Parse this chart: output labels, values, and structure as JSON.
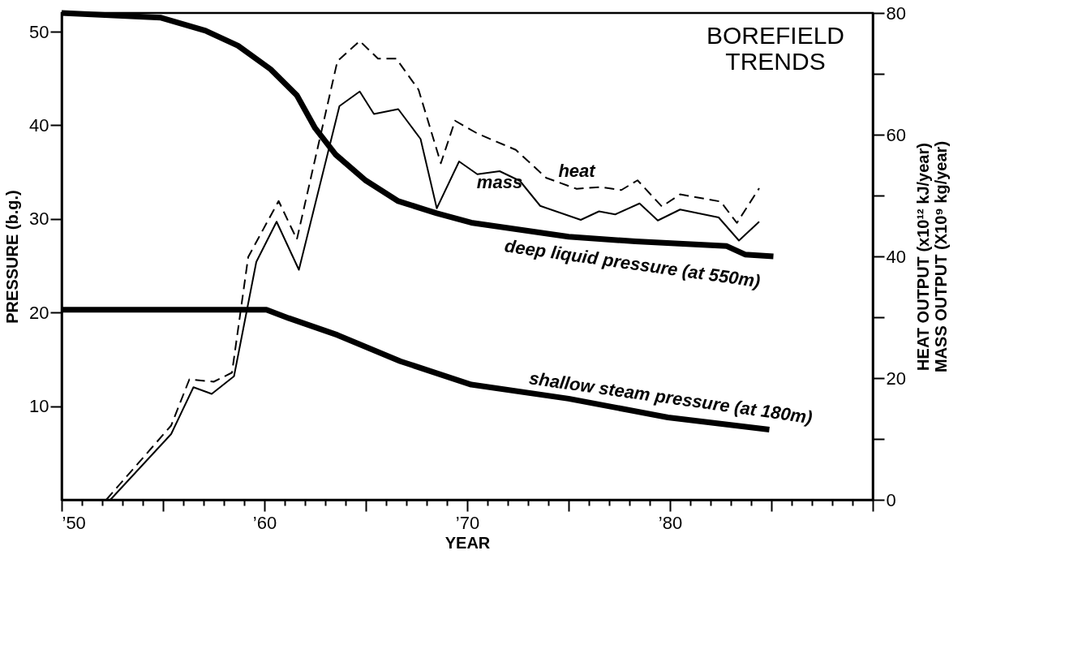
{
  "chart_data": {
    "type": "line",
    "title": "BOREFIELD TRENDS",
    "xlabel": "YEAR",
    "ylabel": "PRESSURE (b.g.)",
    "y2label": "HEAT OUTPUT (x10¹² kJ/year)\nMASS OUTPUT (X10⁹ kg/year)",
    "xlim": [
      1950,
      1990
    ],
    "xticks": [
      {
        "value": 1950,
        "label": "’50"
      },
      {
        "value": 1951,
        "label": null
      },
      {
        "value": 1952,
        "label": null
      },
      {
        "value": 1953,
        "label": null
      },
      {
        "value": 1954,
        "label": null
      },
      {
        "value": 1955,
        "label": null
      },
      {
        "value": 1956,
        "label": null
      },
      {
        "value": 1957,
        "label": null
      },
      {
        "value": 1958,
        "label": null
      },
      {
        "value": 1959,
        "label": null
      },
      {
        "value": 1960,
        "label": "’60"
      },
      {
        "value": 1961,
        "label": null
      },
      {
        "value": 1962,
        "label": null
      },
      {
        "value": 1963,
        "label": null
      },
      {
        "value": 1964,
        "label": null
      },
      {
        "value": 1965,
        "label": null
      },
      {
        "value": 1966,
        "label": null
      },
      {
        "value": 1967,
        "label": null
      },
      {
        "value": 1968,
        "label": null
      },
      {
        "value": 1969,
        "label": null
      },
      {
        "value": 1970,
        "label": "’70"
      },
      {
        "value": 1971,
        "label": null
      },
      {
        "value": 1972,
        "label": null
      },
      {
        "value": 1973,
        "label": null
      },
      {
        "value": 1974,
        "label": null
      },
      {
        "value": 1975,
        "label": null
      },
      {
        "value": 1976,
        "label": null
      },
      {
        "value": 1977,
        "label": null
      },
      {
        "value": 1978,
        "label": null
      },
      {
        "value": 1979,
        "label": null
      },
      {
        "value": 1980,
        "label": "’80"
      },
      {
        "value": 1981,
        "label": null
      },
      {
        "value": 1982,
        "label": null
      },
      {
        "value": 1983,
        "label": null
      },
      {
        "value": 1984,
        "label": null
      },
      {
        "value": 1985,
        "label": null
      },
      {
        "value": 1986,
        "label": null
      },
      {
        "value": 1987,
        "label": null
      },
      {
        "value": 1988,
        "label": null
      },
      {
        "value": 1989,
        "label": null
      },
      {
        "value": 1990,
        "label": null
      }
    ],
    "ylim": [
      0,
      52
    ],
    "yticks": [
      10,
      20,
      30,
      40,
      50
    ],
    "y2lim": [
      0,
      80
    ],
    "y2ticks": [
      0,
      {
        "value": 10,
        "label": null
      },
      20,
      {
        "value": 30,
        "label": null
      },
      40,
      {
        "value": 50,
        "label": null
      },
      60,
      {
        "value": 70,
        "label": null
      },
      80
    ],
    "grid": false,
    "legend": false,
    "marker": "none",
    "series": [
      {
        "name": "deep liquid pressure (at 550m)",
        "color": "#000000",
        "line_style": "solid",
        "x": [
          1950,
          1954.9,
          1957.1,
          1958.7,
          1960.3,
          1961.6,
          1962.5,
          1963.5,
          1965.0,
          1966.6,
          1968.5,
          1970.2,
          1975.0,
          1978.3,
          1982.8,
          1983.7,
          1985.1
        ],
        "values": [
          52,
          51.5,
          50.1,
          48.5,
          46.0,
          43.2,
          39.7,
          36.9,
          34.1,
          31.9,
          30.6,
          29.6,
          28.1,
          27.6,
          27.1,
          26.2,
          26.0
        ]
      },
      {
        "name": "shallow steam pressure (at 180m)",
        "color": "#000000",
        "line_style": "solid",
        "x": [
          1950,
          1960.1,
          1961.2,
          1963.6,
          1966.7,
          1970.2,
          1975.0,
          1979.9,
          1984.9
        ],
        "values": [
          20.3,
          20.3,
          19.4,
          17.6,
          14.8,
          12.3,
          10.8,
          8.8,
          7.5
        ]
      },
      {
        "name": "heat",
        "color": "#000000",
        "line_style": "dashed",
        "axis": "y2",
        "x": [
          1952.2,
          1955.4,
          1956.3,
          1957.5,
          1958.4,
          1959.2,
          1960.7,
          1961.6,
          1963.6,
          1964.7,
          1965.6,
          1966.5,
          1967.6,
          1968.7,
          1969.4,
          1970.5,
          1972.4,
          1973.9,
          1975.4,
          1976.6,
          1977.6,
          1978.4,
          1979.6,
          1980.5,
          1982.5,
          1983.3,
          1984.4
        ],
        "values": [
          0,
          12.2,
          19.8,
          19.4,
          20.9,
          39.9,
          49.1,
          42.8,
          72.1,
          75.4,
          72.5,
          72.5,
          67.4,
          55.3,
          62.3,
          60.2,
          57.5,
          52.9,
          51.1,
          51.4,
          50.9,
          52.5,
          48.2,
          50.2,
          49.0,
          45.5,
          51.2
        ]
      },
      {
        "name": "mass",
        "color": "#000000",
        "line_style": "solid",
        "axis": "y2",
        "x": [
          1952.4,
          1955.4,
          1956.5,
          1957.4,
          1958.5,
          1959.6,
          1960.6,
          1961.7,
          1963.7,
          1964.7,
          1965.4,
          1966.6,
          1967.7,
          1968.5,
          1969.6,
          1970.5,
          1971.6,
          1972.6,
          1973.6,
          1975.6,
          1976.5,
          1977.3,
          1978.5,
          1979.4,
          1980.5,
          1982.4,
          1983.4,
          1984.4
        ],
        "values": [
          0,
          10.8,
          18.5,
          17.4,
          20.3,
          39.1,
          45.7,
          37.8,
          64.7,
          67.1,
          63.4,
          64.2,
          59.3,
          47.9,
          55.6,
          53.5,
          54.0,
          52.4,
          48.3,
          46.0,
          47.4,
          46.9,
          48.7,
          45.9,
          47.7,
          46.4,
          42.6,
          45.7
        ]
      }
    ]
  }
}
